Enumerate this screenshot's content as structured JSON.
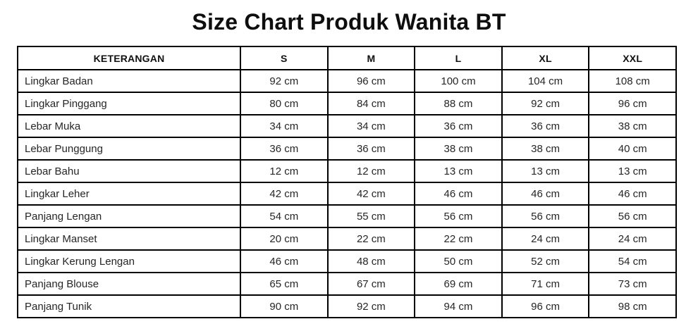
{
  "page_title": "Size Chart Produk Wanita BT",
  "colors": {
    "background": "#ffffff",
    "border": "#000000",
    "title_text": "#0e0e0e",
    "cell_text": "#262626"
  },
  "chart_data": {
    "type": "table",
    "title": "Size Chart Produk Wanita BT",
    "columns": [
      "KETERANGAN",
      "S",
      "M",
      "L",
      "XL",
      "XXL"
    ],
    "rows": [
      {
        "label": "Lingkar Badan",
        "values": [
          "92 cm",
          "96 cm",
          "100 cm",
          "104 cm",
          "108 cm"
        ]
      },
      {
        "label": "Lingkar Pinggang",
        "values": [
          "80 cm",
          "84 cm",
          "88 cm",
          "92 cm",
          "96 cm"
        ]
      },
      {
        "label": "Lebar Muka",
        "values": [
          "34 cm",
          "34 cm",
          "36 cm",
          "36 cm",
          "38 cm"
        ]
      },
      {
        "label": "Lebar Punggung",
        "values": [
          "36 cm",
          "36 cm",
          "38 cm",
          "38 cm",
          "40 cm"
        ]
      },
      {
        "label": "Lebar Bahu",
        "values": [
          "12 cm",
          "12 cm",
          "13 cm",
          "13 cm",
          "13 cm"
        ]
      },
      {
        "label": "Lingkar Leher",
        "values": [
          "42 cm",
          "42 cm",
          "46 cm",
          "46 cm",
          "46 cm"
        ]
      },
      {
        "label": "Panjang Lengan",
        "values": [
          "54 cm",
          "55 cm",
          "56 cm",
          "56 cm",
          "56 cm"
        ]
      },
      {
        "label": "Lingkar Manset",
        "values": [
          "20 cm",
          "22 cm",
          "22 cm",
          "24 cm",
          "24 cm"
        ]
      },
      {
        "label": "Lingkar Kerung Lengan",
        "values": [
          "46 cm",
          "48 cm",
          "50 cm",
          "52 cm",
          "54 cm"
        ]
      },
      {
        "label": "Panjang Blouse",
        "values": [
          "65 cm",
          "67 cm",
          "69 cm",
          "71 cm",
          "73 cm"
        ]
      },
      {
        "label": "Panjang Tunik",
        "values": [
          "90 cm",
          "92 cm",
          "94 cm",
          "96 cm",
          "98 cm"
        ]
      }
    ]
  }
}
